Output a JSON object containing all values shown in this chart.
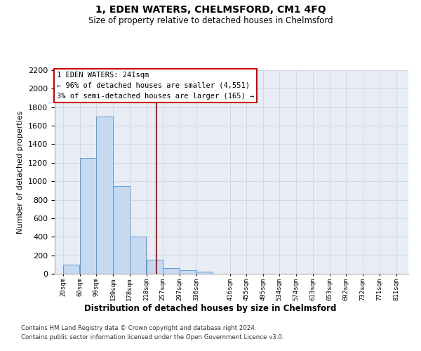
{
  "title": "1, EDEN WATERS, CHELMSFORD, CM1 4FQ",
  "subtitle": "Size of property relative to detached houses in Chelmsford",
  "xlabel": "Distribution of detached houses by size in Chelmsford",
  "ylabel": "Number of detached properties",
  "footnote1": "Contains HM Land Registry data © Crown copyright and database right 2024.",
  "footnote2": "Contains public sector information licensed under the Open Government Licence v3.0.",
  "bar_left_edges": [
    20,
    60,
    99,
    139,
    178,
    218,
    257,
    297,
    336,
    416,
    455,
    495,
    534,
    574,
    613,
    653,
    692,
    732,
    771
  ],
  "bar_widths": [
    39,
    39,
    39,
    39,
    39,
    39,
    39,
    39,
    39,
    39,
    39,
    39,
    39,
    39,
    39,
    39,
    39,
    39,
    39
  ],
  "bar_heights": [
    100,
    1250,
    1700,
    950,
    400,
    150,
    60,
    35,
    20,
    0,
    0,
    0,
    0,
    0,
    0,
    0,
    0,
    0,
    0
  ],
  "bar_color": "#c6d9f1",
  "bar_edgecolor": "#5b9bd5",
  "tick_labels": [
    "20sqm",
    "60sqm",
    "99sqm",
    "139sqm",
    "178sqm",
    "218sqm",
    "257sqm",
    "297sqm",
    "336sqm",
    "416sqm",
    "455sqm",
    "495sqm",
    "534sqm",
    "574sqm",
    "613sqm",
    "653sqm",
    "692sqm",
    "732sqm",
    "771sqm",
    "811sqm"
  ],
  "tick_positions": [
    20,
    60,
    99,
    139,
    178,
    218,
    257,
    297,
    336,
    416,
    455,
    495,
    534,
    574,
    613,
    653,
    692,
    732,
    771,
    811
  ],
  "ylim": [
    0,
    2200
  ],
  "xlim": [
    0,
    840
  ],
  "yticks": [
    0,
    200,
    400,
    600,
    800,
    1000,
    1200,
    1400,
    1600,
    1800,
    2000,
    2200
  ],
  "property_line_x": 241,
  "property_line_color": "#cc0000",
  "annotation_text": "1 EDEN WATERS: 241sqm\n← 96% of detached houses are smaller (4,551)\n3% of semi-detached houses are larger (165) →",
  "annotation_box_edgecolor": "#cc0000",
  "grid_color": "#d0d8e8",
  "background_color": "#e8edf5"
}
